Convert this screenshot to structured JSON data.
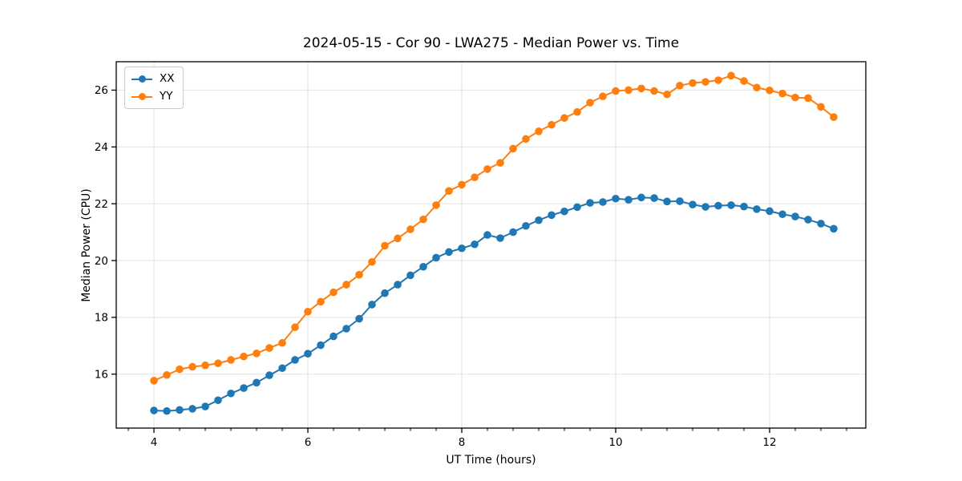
{
  "figure": {
    "title": "2024-05-15 - Cor 90 - LWA275 - Median Power vs. Time"
  },
  "chart_data": {
    "type": "line",
    "title": "2024-05-15 - Cor 90 - LWA275 - Median Power vs. Time",
    "xlabel": "UT Time (hours)",
    "ylabel": "Median Power (CPU)",
    "xlim": [
      3.51,
      13.25
    ],
    "ylim": [
      14.1,
      27.0
    ],
    "xticks": [
      4,
      6,
      8,
      10,
      12
    ],
    "yticks": [
      16,
      18,
      20,
      22,
      24,
      26
    ],
    "minor_xtick_step": 0.3333,
    "grid": true,
    "grid_color": "#e2e2e2",
    "spine_color": "#000000",
    "legend_position": "upper left",
    "x": [
      4.0,
      4.167,
      4.333,
      4.5,
      4.667,
      4.833,
      5.0,
      5.167,
      5.333,
      5.5,
      5.667,
      5.833,
      6.0,
      6.167,
      6.333,
      6.5,
      6.667,
      6.833,
      7.0,
      7.167,
      7.333,
      7.5,
      7.667,
      7.833,
      8.0,
      8.167,
      8.333,
      8.5,
      8.667,
      8.833,
      9.0,
      9.167,
      9.333,
      9.5,
      9.667,
      9.833,
      10.0,
      10.167,
      10.333,
      10.5,
      10.667,
      10.833,
      11.0,
      11.167,
      11.333,
      11.5,
      11.667,
      11.833,
      12.0,
      12.167,
      12.333,
      12.5,
      12.667,
      12.833
    ],
    "series": [
      {
        "name": "XX",
        "color": "#1f77b4",
        "values": [
          14.72,
          14.7,
          14.74,
          14.78,
          14.86,
          15.08,
          15.32,
          15.51,
          15.7,
          15.96,
          16.21,
          16.5,
          16.72,
          17.02,
          17.33,
          17.6,
          17.95,
          18.45,
          18.85,
          19.15,
          19.48,
          19.78,
          20.1,
          20.3,
          20.43,
          20.57,
          20.9,
          20.79,
          21.0,
          21.22,
          21.42,
          21.6,
          21.73,
          21.88,
          22.03,
          22.06,
          22.18,
          22.14,
          22.22,
          22.2,
          22.08,
          22.09,
          21.97,
          21.89,
          21.93,
          21.95,
          21.9,
          21.81,
          21.74,
          21.63,
          21.55,
          21.44,
          21.3,
          21.12
        ]
      },
      {
        "name": "YY",
        "color": "#ff7f0e",
        "values": [
          15.77,
          15.97,
          16.17,
          16.26,
          16.31,
          16.38,
          16.5,
          16.62,
          16.73,
          16.92,
          17.1,
          17.65,
          18.2,
          18.55,
          18.88,
          19.15,
          19.5,
          19.95,
          20.52,
          20.78,
          21.1,
          21.45,
          21.95,
          22.45,
          22.67,
          22.93,
          23.22,
          23.44,
          23.94,
          24.28,
          24.55,
          24.78,
          25.02,
          25.23,
          25.56,
          25.78,
          25.97,
          26.0,
          26.06,
          25.97,
          25.85,
          26.16,
          26.25,
          26.29,
          26.35,
          26.51,
          26.32,
          26.09,
          25.99,
          25.88,
          25.74,
          25.72,
          25.41,
          25.05
        ]
      }
    ]
  }
}
